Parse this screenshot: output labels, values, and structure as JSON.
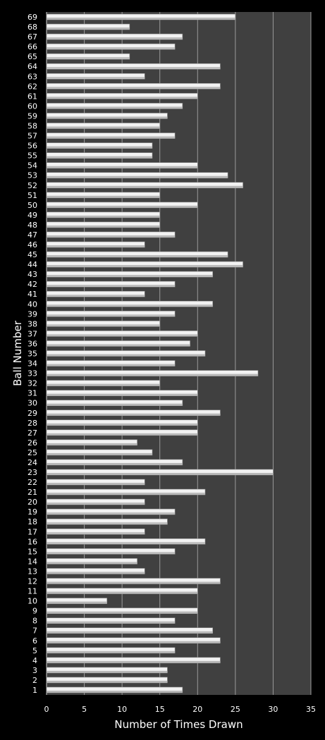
{
  "chart_data": {
    "type": "bar",
    "orientation": "horizontal",
    "title": "",
    "xlabel": "Number of Times Drawn",
    "ylabel": "Ball Number",
    "xlim": [
      0,
      35
    ],
    "xticks": [
      0,
      5,
      10,
      15,
      20,
      25,
      30,
      35
    ],
    "grid": true,
    "legend": "none",
    "colors": {
      "background": "#000000",
      "plot_area": "#404040",
      "bar": "#f2f2f2",
      "grid": "#9a9a9a",
      "text": "#ffffff"
    },
    "categories": [
      "1",
      "2",
      "3",
      "4",
      "5",
      "6",
      "7",
      "8",
      "9",
      "10",
      "11",
      "12",
      "13",
      "14",
      "15",
      "16",
      "17",
      "18",
      "19",
      "20",
      "21",
      "22",
      "23",
      "24",
      "25",
      "26",
      "27",
      "28",
      "29",
      "30",
      "31",
      "32",
      "33",
      "34",
      "35",
      "36",
      "37",
      "38",
      "39",
      "40",
      "41",
      "42",
      "43",
      "44",
      "45",
      "46",
      "47",
      "48",
      "49",
      "50",
      "51",
      "52",
      "53",
      "54",
      "55",
      "56",
      "57",
      "58",
      "59",
      "60",
      "61",
      "62",
      "63",
      "64",
      "65",
      "66",
      "67",
      "68",
      "69"
    ],
    "values": [
      18,
      16,
      16,
      23,
      17,
      23,
      22,
      17,
      20,
      8,
      20,
      23,
      13,
      12,
      17,
      21,
      13,
      16,
      17,
      13,
      21,
      13,
      30,
      18,
      14,
      12,
      20,
      20,
      23,
      18,
      20,
      15,
      28,
      17,
      21,
      19,
      20,
      15,
      17,
      22,
      13,
      17,
      22,
      26,
      24,
      13,
      17,
      15,
      15,
      20,
      15,
      26,
      24,
      20,
      14,
      14,
      17,
      15,
      16,
      18,
      20,
      23,
      13,
      23,
      11,
      17,
      18,
      11,
      25
    ]
  }
}
